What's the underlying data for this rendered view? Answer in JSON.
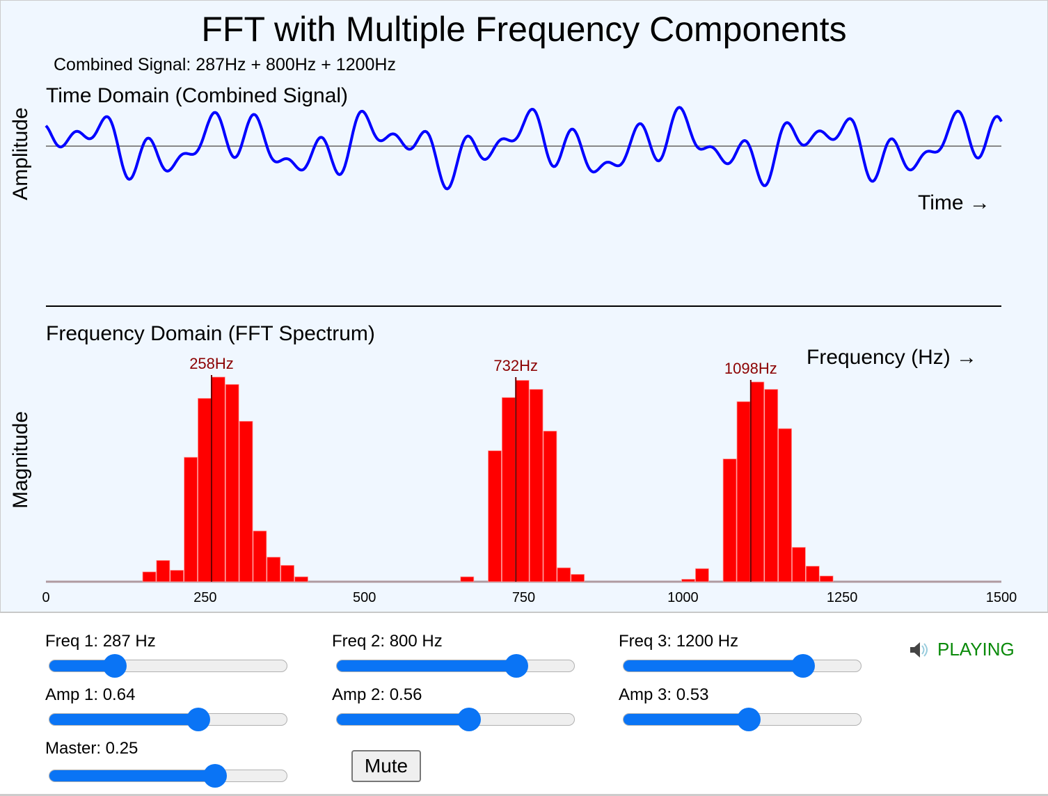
{
  "title": "FFT with Multiple Frequency Components",
  "subtitle": "Combined Signal: 287Hz + 800Hz + 1200Hz",
  "time_panel": {
    "title": "Time Domain (Combined Signal)",
    "ylabel": "Amplitude",
    "xlabel": "Time →"
  },
  "freq_panel": {
    "title": "Frequency Domain (FFT Spectrum)",
    "ylabel": "Magnitude",
    "xlabel": "Frequency (Hz) →"
  },
  "colors": {
    "waveform": "#0000ff",
    "bars": "#ff0000",
    "peak_label": "#8b0000",
    "accent": "#0a74f5",
    "status": "#0a8a0a",
    "panel_bg": "#f0f7ff"
  },
  "chart_data": [
    {
      "type": "line",
      "title": "Time Domain (Combined Signal)",
      "ylabel": "Amplitude",
      "xlabel": "Time →",
      "components": [
        {
          "freq_hz": 287,
          "amp": 0.64
        },
        {
          "freq_hz": 800,
          "amp": 0.56
        },
        {
          "freq_hz": 1200,
          "amp": 0.53
        }
      ]
    },
    {
      "type": "bar",
      "title": "Frequency Domain (FFT Spectrum)",
      "xlabel": "Frequency (Hz) →",
      "ylabel": "Magnitude",
      "xlim": [
        0,
        1500
      ],
      "ylim": [
        0,
        255
      ],
      "xticks": [
        "0",
        "250",
        "500",
        "750",
        "1000",
        "1250",
        "1500"
      ],
      "bin_width_hz": 21.53,
      "bins": [
        {
          "bin": 7,
          "value": 12
        },
        {
          "bin": 8,
          "value": 26
        },
        {
          "bin": 9,
          "value": 14
        },
        {
          "bin": 10,
          "value": 152
        },
        {
          "bin": 11,
          "value": 224
        },
        {
          "bin": 12,
          "value": 250
        },
        {
          "bin": 13,
          "value": 241
        },
        {
          "bin": 14,
          "value": 196
        },
        {
          "bin": 15,
          "value": 62
        },
        {
          "bin": 16,
          "value": 30
        },
        {
          "bin": 17,
          "value": 20
        },
        {
          "bin": 18,
          "value": 6
        },
        {
          "bin": 30,
          "value": 6
        },
        {
          "bin": 32,
          "value": 160
        },
        {
          "bin": 33,
          "value": 225
        },
        {
          "bin": 34,
          "value": 246
        },
        {
          "bin": 35,
          "value": 235
        },
        {
          "bin": 36,
          "value": 184
        },
        {
          "bin": 37,
          "value": 17
        },
        {
          "bin": 38,
          "value": 9
        },
        {
          "bin": 46,
          "value": 3
        },
        {
          "bin": 47,
          "value": 16
        },
        {
          "bin": 49,
          "value": 150
        },
        {
          "bin": 50,
          "value": 220
        },
        {
          "bin": 51,
          "value": 244
        },
        {
          "bin": 52,
          "value": 235
        },
        {
          "bin": 53,
          "value": 187
        },
        {
          "bin": 54,
          "value": 42
        },
        {
          "bin": 55,
          "value": 19
        },
        {
          "bin": 56,
          "value": 7
        }
      ],
      "peaks": [
        {
          "label": "258Hz",
          "freq_hz": 258
        },
        {
          "label": "732Hz",
          "freq_hz": 732
        },
        {
          "label": "1098Hz",
          "freq_hz": 1098
        }
      ]
    }
  ],
  "controls": {
    "freq1": {
      "label": "Freq 1: 287 Hz",
      "value": 287,
      "position": 0.28
    },
    "freq2": {
      "label": "Freq 2: 800 Hz",
      "value": 800,
      "position": 0.76
    },
    "freq3": {
      "label": "Freq 3: 1200 Hz",
      "value": 1200,
      "position": 0.76
    },
    "amp1": {
      "label": "Amp 1: 0.64",
      "value": 0.64,
      "position": 0.63
    },
    "amp2": {
      "label": "Amp 2: 0.56",
      "value": 0.56,
      "position": 0.56
    },
    "amp3": {
      "label": "Amp 3: 0.53",
      "value": 0.53,
      "position": 0.53
    },
    "master": {
      "label": "Master: 0.25",
      "value": 0.25,
      "position": 0.7
    },
    "mute_label": "Mute",
    "status": {
      "icon": "speaker-icon",
      "text": "PLAYING"
    }
  }
}
